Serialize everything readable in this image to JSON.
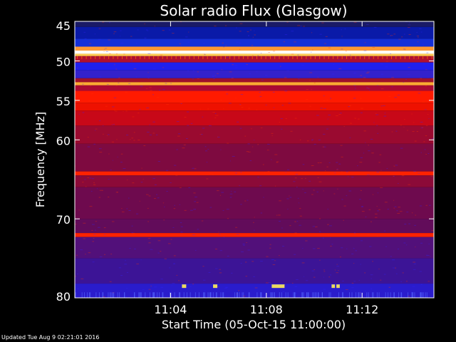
{
  "chart_data": {
    "type": "heatmap",
    "title": "Solar radio Flux (Glasgow)",
    "xlabel": "Start Time (05-Oct-15 11:00:00)",
    "ylabel": "Frequency [MHz]",
    "x_range_minutes": [
      0,
      15
    ],
    "x_ticks": [
      {
        "minute": 4,
        "label": "11:04"
      },
      {
        "minute": 8,
        "label": "11:08"
      },
      {
        "minute": 12,
        "label": "11:12"
      }
    ],
    "y_range_mhz": [
      45,
      80
    ],
    "y_ticks": [
      {
        "mhz": 45,
        "label": "45"
      },
      {
        "mhz": 50,
        "label": "50"
      },
      {
        "mhz": 55,
        "label": "55"
      },
      {
        "mhz": 60,
        "label": "60"
      },
      {
        "mhz": 70,
        "label": "70"
      },
      {
        "mhz": 80,
        "label": "80"
      }
    ],
    "colormap": [
      "#000033",
      "#0000cc",
      "#3333ff",
      "#660066",
      "#aa0022",
      "#ff0000",
      "#ff9900",
      "#ffff66",
      "#ffffff"
    ],
    "bands": [
      {
        "from": 45.0,
        "to": 45.7,
        "color": "#1a1a66"
      },
      {
        "from": 45.7,
        "to": 47.2,
        "color": "#0a1aa8"
      },
      {
        "from": 47.2,
        "to": 48.2,
        "color": "#1530d8"
      },
      {
        "from": 48.2,
        "to": 48.7,
        "color": "#ff9933"
      },
      {
        "from": 48.7,
        "to": 49.1,
        "color": "#ffffff"
      },
      {
        "from": 49.1,
        "to": 49.4,
        "color": "#ffcc55"
      },
      {
        "from": 49.4,
        "to": 50.2,
        "color": "#b01030"
      },
      {
        "from": 50.2,
        "to": 51.2,
        "color": "#2020ee"
      },
      {
        "from": 51.2,
        "to": 52.2,
        "color": "#3322cc"
      },
      {
        "from": 52.2,
        "to": 52.7,
        "color": "#a0102a"
      },
      {
        "from": 52.7,
        "to": 53.1,
        "color": "#ffaa33"
      },
      {
        "from": 53.1,
        "to": 53.8,
        "color": "#aa0a33"
      },
      {
        "from": 53.8,
        "to": 55.3,
        "color": "#ff1a00"
      },
      {
        "from": 55.3,
        "to": 56.3,
        "color": "#ee1100"
      },
      {
        "from": 56.3,
        "to": 58.2,
        "color": "#c80818"
      },
      {
        "from": 58.2,
        "to": 60.5,
        "color": "#9a0a30"
      },
      {
        "from": 60.5,
        "to": 64.0,
        "color": "#7e0a40"
      },
      {
        "from": 64.0,
        "to": 64.5,
        "color": "#ff2200"
      },
      {
        "from": 64.5,
        "to": 66.0,
        "color": "#8c0a38"
      },
      {
        "from": 66.0,
        "to": 70.0,
        "color": "#6e0a4e"
      },
      {
        "from": 70.0,
        "to": 71.8,
        "color": "#620c5a"
      },
      {
        "from": 71.8,
        "to": 72.3,
        "color": "#ff2200"
      },
      {
        "from": 72.3,
        "to": 75.0,
        "color": "#52107a"
      },
      {
        "from": 75.0,
        "to": 78.2,
        "color": "#3c1496"
      },
      {
        "from": 78.2,
        "to": 80.0,
        "color": "#2a1ccc"
      }
    ]
  },
  "footer": {
    "updated": "Updated Tue Aug  9 02:21:01 2016"
  }
}
